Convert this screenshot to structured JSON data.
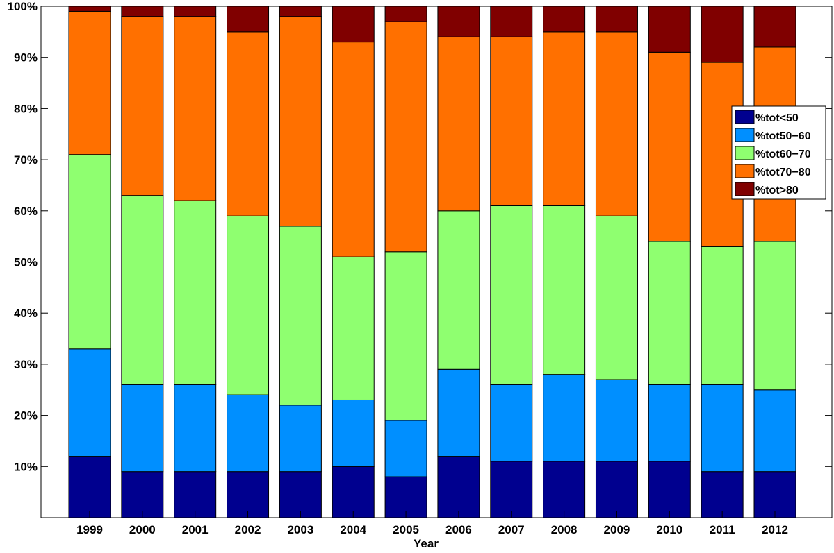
{
  "chart_data": {
    "type": "bar",
    "stacked": true,
    "title": "",
    "xlabel": "Year",
    "ylabel": "",
    "categories": [
      "1999",
      "2000",
      "2001",
      "2002",
      "2003",
      "2004",
      "2005",
      "2006",
      "2007",
      "2008",
      "2009",
      "2010",
      "2011",
      "2012"
    ],
    "ylim": [
      0,
      100
    ],
    "y_ticks": [
      {
        "value": 10,
        "label": "10%"
      },
      {
        "value": 20,
        "label": "20%"
      },
      {
        "value": 30,
        "label": "30%"
      },
      {
        "value": 40,
        "label": "40%"
      },
      {
        "value": 50,
        "label": "50%"
      },
      {
        "value": 60,
        "label": "60%"
      },
      {
        "value": 70,
        "label": "70%"
      },
      {
        "value": 80,
        "label": "80%"
      },
      {
        "value": 90,
        "label": "90%"
      },
      {
        "value": 100,
        "label": "100%"
      }
    ],
    "grid": false,
    "legend_position": "right",
    "series": [
      {
        "name": "%tot<50",
        "color": "#00008F",
        "values": [
          12,
          9,
          9,
          9,
          9,
          10,
          8,
          12,
          11,
          11,
          11,
          11,
          9,
          9
        ]
      },
      {
        "name": "%tot50−60",
        "color": "#008FFF",
        "values": [
          21,
          17,
          17,
          15,
          13,
          13,
          11,
          17,
          15,
          17,
          16,
          15,
          17,
          16
        ]
      },
      {
        "name": "%tot60−70",
        "color": "#8FFF70",
        "values": [
          38,
          37,
          36,
          35,
          35,
          28,
          33,
          31,
          35,
          33,
          32,
          28,
          27,
          29
        ]
      },
      {
        "name": "%tot70−80",
        "color": "#FF7000",
        "values": [
          28,
          35,
          36,
          36,
          41,
          42,
          45,
          34,
          33,
          34,
          36,
          37,
          36,
          38
        ]
      },
      {
        "name": "%tot>80",
        "color": "#800000",
        "values": [
          1,
          2,
          2,
          5,
          2,
          7,
          3,
          6,
          6,
          5,
          5,
          9,
          11,
          8
        ]
      }
    ]
  }
}
